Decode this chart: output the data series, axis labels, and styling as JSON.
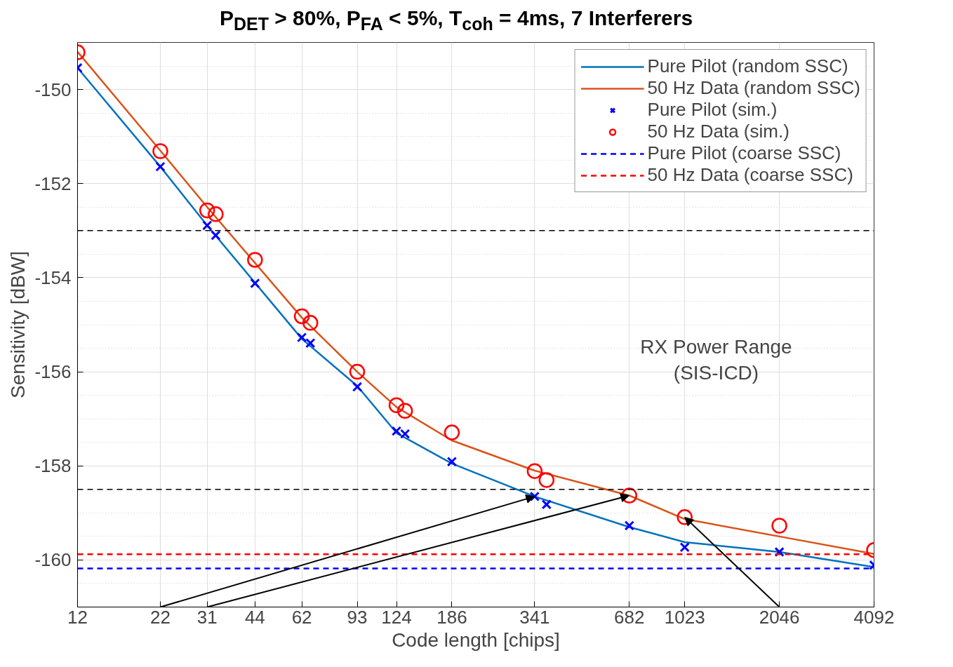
{
  "chart_data": {
    "type": "line",
    "title": "P$_{DET}$ > 80%, P$_{FA}$ < 5%, T$_{coh}$ = 4ms, 7 Interferers",
    "xlabel": "Code length [chips]",
    "ylabel": "Sensitivity [dBW]",
    "log": "x",
    "grid": true,
    "legend": "top right",
    "xlim": [
      12,
      4092
    ],
    "xticks": [
      12,
      22,
      31,
      44,
      62,
      93,
      124,
      186,
      341,
      682,
      1023,
      2046,
      4092
    ],
    "ylim": [
      -161,
      -149
    ],
    "yticks": [
      -160,
      -158,
      -156,
      -154,
      -152,
      -150
    ],
    "series": [
      {
        "name": "Pure Pilot (random SSC)",
        "line_style": "solid",
        "color": "#0072bd",
        "x": [
          12,
          22,
          31,
          62,
          93,
          124,
          186,
          341,
          682,
          1023,
          2046,
          4092
        ],
        "values": [
          -149.54,
          -151.64,
          -152.89,
          -155.3,
          -156.3,
          -157.3,
          -157.95,
          -158.65,
          -159.3,
          -159.62,
          -159.83,
          -160.15
        ]
      },
      {
        "name": "50 Hz Data (random SSC)",
        "line_style": "solid",
        "color": "#d95319",
        "x": [
          12,
          22,
          31,
          62,
          93,
          124,
          186,
          341,
          682,
          1023,
          2046,
          4092
        ],
        "values": [
          -149.2,
          -151.3,
          -152.5,
          -154.85,
          -156.0,
          -156.75,
          -157.46,
          -158.1,
          -158.63,
          -159.13,
          -159.5,
          -159.87
        ]
      },
      {
        "name": "Pure Pilot (sim.)",
        "type": "scatter",
        "marker": "cross",
        "color": "#0000ff",
        "x": [
          12,
          22,
          31,
          33,
          44,
          62,
          66,
          93,
          124,
          132,
          186,
          341,
          372,
          682,
          1023,
          2046,
          4092
        ],
        "values": [
          -149.54,
          -151.64,
          -152.89,
          -153.1,
          -154.12,
          -155.27,
          -155.39,
          -156.32,
          -157.26,
          -157.32,
          -157.91,
          -158.65,
          -158.82,
          -159.27,
          -159.73,
          -159.83,
          -160.11
        ]
      },
      {
        "name": "50 Hz Data (sim.)",
        "type": "scatter",
        "marker": "circle",
        "color": "#ff0000",
        "x": [
          12,
          22,
          31,
          33,
          44,
          62,
          66,
          93,
          124,
          132,
          186,
          341,
          372,
          682,
          1023,
          2046,
          4092
        ],
        "values": [
          -149.21,
          -151.31,
          -152.57,
          -152.65,
          -153.62,
          -154.82,
          -154.96,
          -156.0,
          -156.71,
          -156.83,
          -157.29,
          -158.11,
          -158.3,
          -158.63,
          -159.09,
          -159.27,
          -159.79
        ]
      },
      {
        "name": "Pure Pilot (coarse SSC)",
        "line_style": "dashed",
        "color": "#0000ff",
        "x": [
          12,
          4092
        ],
        "values": [
          -160.18,
          -160.18
        ]
      },
      {
        "name": "50 Hz Data (coarse SSC)",
        "line_style": "dashed",
        "color": "#ff0000",
        "x": [
          12,
          4092
        ],
        "values": [
          -159.88,
          -159.88
        ]
      }
    ],
    "ref_lines": [
      {
        "axis": "y",
        "value": -153,
        "color": "#000000",
        "line_style": "dashed"
      },
      {
        "axis": "y",
        "value": -158.5,
        "color": "#000000",
        "line_style": "dashed"
      }
    ],
    "annotations": [
      "RX Power Range\n(SIS-ICD)"
    ]
  }
}
